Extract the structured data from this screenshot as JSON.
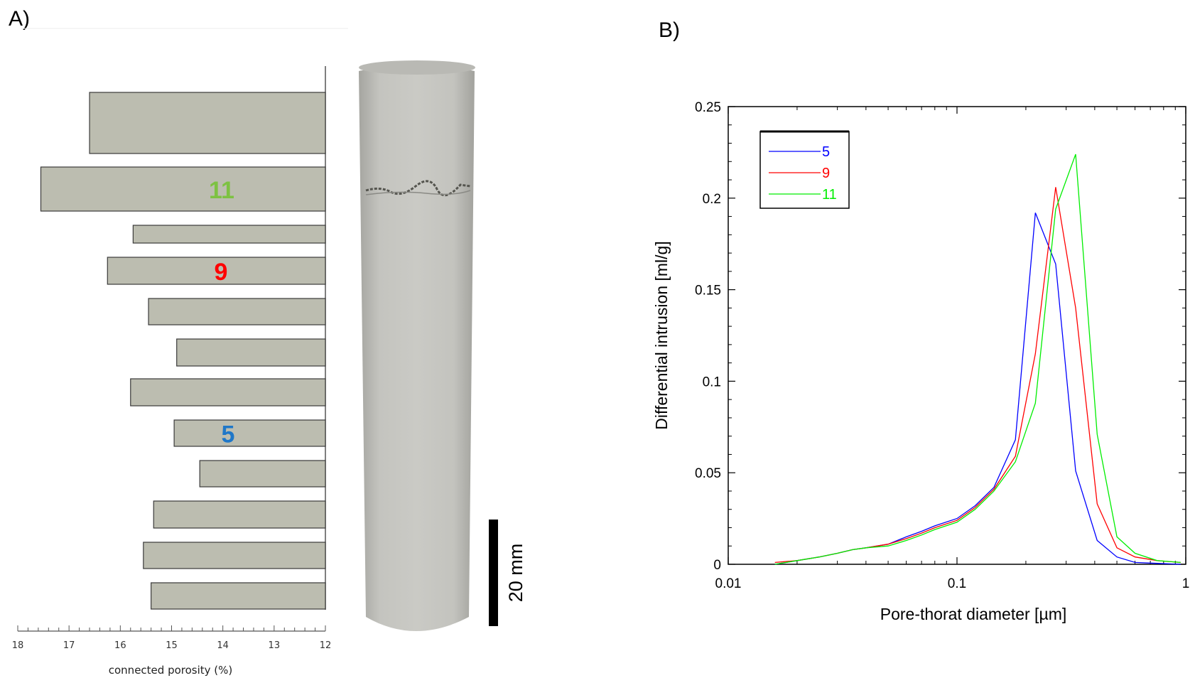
{
  "panels": {
    "a_label": "A)",
    "b_label": "B)"
  },
  "core": {
    "scale_label": "20 mm"
  },
  "chart_data": [
    {
      "type": "bar",
      "orientation": "horizontal",
      "xlabel": "connected porosity (%)",
      "x_ticks": [
        "18",
        "17",
        "16",
        "15",
        "14",
        "13",
        "12"
      ],
      "xlim": [
        18,
        12
      ],
      "x_reversed": true,
      "values": [
        16.6,
        17.55,
        15.75,
        16.25,
        15.45,
        14.9,
        15.8,
        14.95,
        14.45,
        15.35,
        15.55,
        15.4
      ],
      "bar_labels": [
        {
          "bar_index": 1,
          "text": "11",
          "color": "#7dc242"
        },
        {
          "bar_index": 3,
          "text": "9",
          "color": "#ff0000"
        },
        {
          "bar_index": 7,
          "text": "5",
          "color": "#1f77c8"
        }
      ],
      "bar_fill": "#bcbdb0",
      "grid": false
    },
    {
      "type": "line",
      "x_scale": "log",
      "xlabel": "Pore-thorat diameter [µm]",
      "ylabel": "Differential intrusion [ml/g]",
      "xlim": [
        0.01,
        1
      ],
      "ylim": [
        0,
        0.25
      ],
      "x_ticks": [
        "0.01",
        "0.1",
        "1"
      ],
      "y_ticks": [
        "0",
        "0.05",
        "0.1",
        "0.15",
        "0.2",
        "0.25"
      ],
      "legend_position": "top-left",
      "grid": false,
      "series": [
        {
          "name": "5",
          "color": "#0000ff",
          "x": [
            0.016,
            0.02,
            0.025,
            0.03,
            0.035,
            0.04,
            0.05,
            0.06,
            0.07,
            0.08,
            0.1,
            0.12,
            0.145,
            0.18,
            0.22,
            0.27,
            0.33,
            0.41,
            0.5,
            0.6,
            0.75,
            0.95
          ],
          "y": [
            0.0,
            0.002,
            0.004,
            0.006,
            0.008,
            0.009,
            0.011,
            0.015,
            0.018,
            0.021,
            0.025,
            0.032,
            0.042,
            0.068,
            0.192,
            0.164,
            0.051,
            0.013,
            0.004,
            0.001,
            0.0005,
            0.0
          ]
        },
        {
          "name": "9",
          "color": "#ff0000",
          "x": [
            0.016,
            0.02,
            0.025,
            0.03,
            0.035,
            0.04,
            0.05,
            0.06,
            0.07,
            0.08,
            0.1,
            0.12,
            0.145,
            0.18,
            0.22,
            0.27,
            0.33,
            0.41,
            0.5,
            0.6,
            0.75,
            0.95
          ],
          "y": [
            0.001,
            0.002,
            0.004,
            0.006,
            0.008,
            0.009,
            0.011,
            0.014,
            0.017,
            0.02,
            0.024,
            0.031,
            0.041,
            0.059,
            0.115,
            0.206,
            0.14,
            0.033,
            0.009,
            0.004,
            0.002,
            0.001
          ]
        },
        {
          "name": "11",
          "color": "#00ee00",
          "x": [
            0.016,
            0.02,
            0.025,
            0.03,
            0.035,
            0.04,
            0.05,
            0.06,
            0.07,
            0.08,
            0.1,
            0.12,
            0.145,
            0.18,
            0.22,
            0.27,
            0.33,
            0.41,
            0.5,
            0.6,
            0.75,
            0.95
          ],
          "y": [
            0.0,
            0.002,
            0.004,
            0.006,
            0.008,
            0.009,
            0.01,
            0.013,
            0.016,
            0.019,
            0.023,
            0.03,
            0.04,
            0.056,
            0.088,
            0.194,
            0.224,
            0.071,
            0.015,
            0.006,
            0.002,
            0.001
          ]
        }
      ]
    }
  ]
}
